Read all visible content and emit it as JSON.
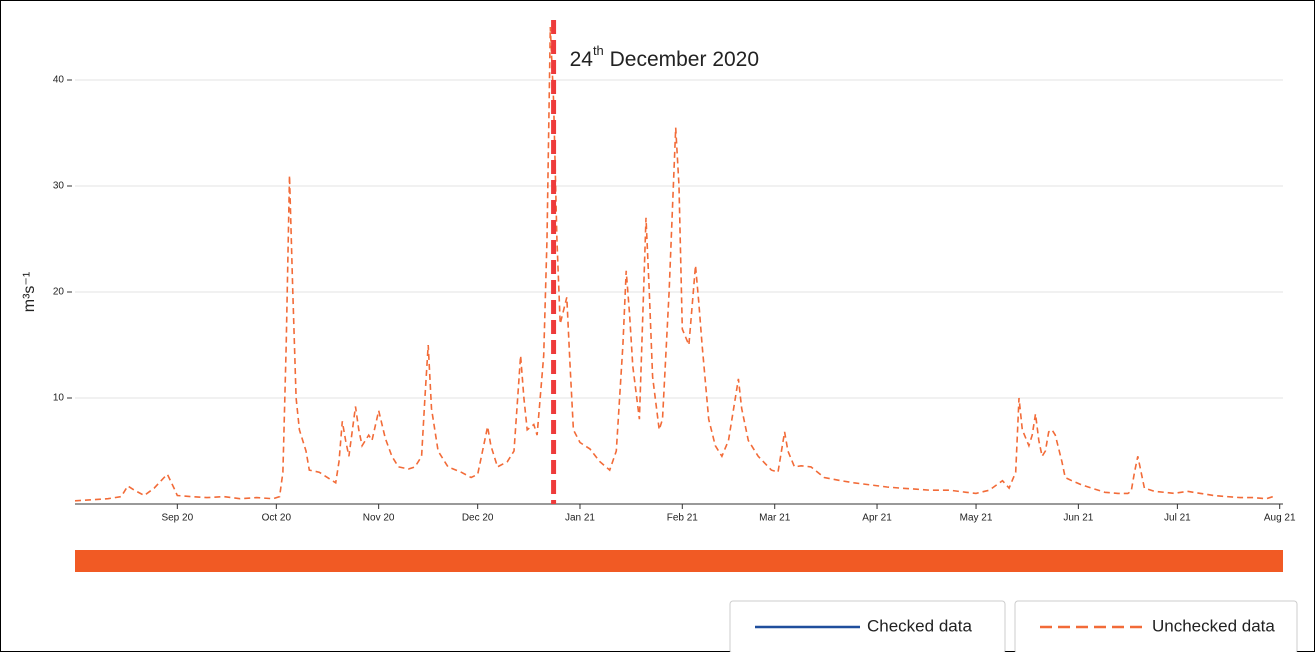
{
  "chart_data": {
    "type": "line",
    "y_label": "m³s⁻¹",
    "xlim": [
      0,
      366
    ],
    "ylim": [
      0,
      45
    ],
    "yticks": [
      10,
      20,
      30,
      40
    ],
    "grid": true,
    "xticks": [
      {
        "value": 31,
        "label": "Sep 20"
      },
      {
        "value": 61,
        "label": "Oct 20"
      },
      {
        "value": 92,
        "label": "Nov 20"
      },
      {
        "value": 122,
        "label": "Dec 20"
      },
      {
        "value": 153,
        "label": "Jan 21"
      },
      {
        "value": 184,
        "label": "Feb 21"
      },
      {
        "value": 212,
        "label": "Mar 21"
      },
      {
        "value": 243,
        "label": "Apr 21"
      },
      {
        "value": 273,
        "label": "May 21"
      },
      {
        "value": 304,
        "label": "Jun 21"
      },
      {
        "value": 334,
        "label": "Jul 21"
      },
      {
        "value": 365,
        "label": "Aug 21"
      }
    ],
    "series": [
      {
        "name": "Unchecked data",
        "color": "#f26b38",
        "style": "dashed",
        "x": [
          0,
          5,
          10,
          14,
          16,
          18,
          21,
          24,
          27,
          28,
          30,
          31,
          35,
          40,
          45,
          50,
          55,
          60,
          62,
          63,
          64,
          65,
          66,
          67,
          68,
          70,
          71,
          74,
          77,
          79,
          80,
          81,
          82,
          83,
          85,
          86,
          87,
          89,
          90,
          92,
          94,
          96,
          98,
          101,
          103,
          105,
          106,
          107,
          108,
          110,
          113,
          117,
          120,
          122,
          125,
          126,
          128,
          131,
          133,
          135,
          136,
          137,
          139,
          140,
          142,
          143,
          144,
          145,
          146,
          147,
          149,
          150,
          151,
          153,
          156,
          159,
          162,
          164,
          166,
          167,
          168,
          169,
          171,
          173,
          174,
          175,
          177,
          178,
          180,
          182,
          183,
          184,
          186,
          188,
          189,
          190,
          192,
          194,
          196,
          198,
          201,
          202,
          204,
          207,
          211,
          213,
          215,
          216,
          218,
          220,
          223,
          227,
          232,
          236,
          241,
          246,
          250,
          255,
          259,
          265,
          270,
          273,
          277,
          281,
          283,
          285,
          286,
          287,
          289,
          290,
          291,
          292,
          293,
          294,
          295,
          296,
          297,
          299,
          300,
          302,
          305,
          308,
          312,
          316,
          319,
          320,
          321,
          322,
          323,
          324,
          327,
          330,
          333,
          337,
          341,
          345,
          349,
          353,
          357,
          361,
          364
        ],
        "values": [
          0.3,
          0.4,
          0.5,
          0.7,
          1.7,
          1.3,
          0.8,
          1.5,
          2.5,
          2.8,
          1.5,
          0.8,
          0.7,
          0.6,
          0.7,
          0.5,
          0.6,
          0.5,
          0.7,
          3,
          15,
          31,
          20,
          10,
          7,
          5,
          3.2,
          3,
          2.4,
          2,
          4,
          7.8,
          6,
          4.5,
          9.2,
          7,
          5.5,
          6.5,
          6,
          8.8,
          6.2,
          4.5,
          3.5,
          3.3,
          3.5,
          4.5,
          10,
          15,
          9,
          5,
          3.5,
          3,
          2.5,
          2.8,
          7.3,
          5.5,
          3.5,
          4,
          5,
          14,
          10,
          7,
          7.5,
          6.5,
          14,
          25,
          45,
          38,
          25,
          17,
          19.5,
          13,
          7,
          5.8,
          5.2,
          4,
          3.2,
          5,
          15,
          22,
          18,
          13,
          8,
          27,
          20,
          12,
          7,
          8,
          20,
          35.5,
          30,
          16.5,
          15,
          22.5,
          19,
          15,
          8,
          5.5,
          4.5,
          6,
          11.8,
          9,
          6,
          4.5,
          3.2,
          3,
          6.8,
          5,
          3.5,
          3.6,
          3.5,
          2.5,
          2.2,
          2,
          1.8,
          1.6,
          1.5,
          1.4,
          1.3,
          1.3,
          1.1,
          1.0,
          1.3,
          2.2,
          1.5,
          3,
          10,
          7,
          5.5,
          6.5,
          8.5,
          6,
          4.5,
          5,
          6.8,
          7,
          6.5,
          4,
          2.5,
          2.2,
          1.8,
          1.5,
          1.1,
          1.0,
          1.0,
          1.2,
          3,
          4.5,
          3,
          1.5,
          1.2,
          1.1,
          1.0,
          1.2,
          1.0,
          0.8,
          0.7,
          0.6,
          0.6,
          0.5,
          0.8
        ]
      }
    ],
    "annotations": [
      {
        "x": 145,
        "color": "#ee3b3b",
        "label": [
          "24",
          "th",
          " December 2020"
        ]
      }
    ],
    "legend": [
      {
        "name": "Checked data",
        "color": "#1f4e9c",
        "style": "solid"
      },
      {
        "name": "Unchecked data",
        "color": "#f26b38",
        "style": "dashed"
      }
    ],
    "coverage_color": "#f15a24"
  }
}
